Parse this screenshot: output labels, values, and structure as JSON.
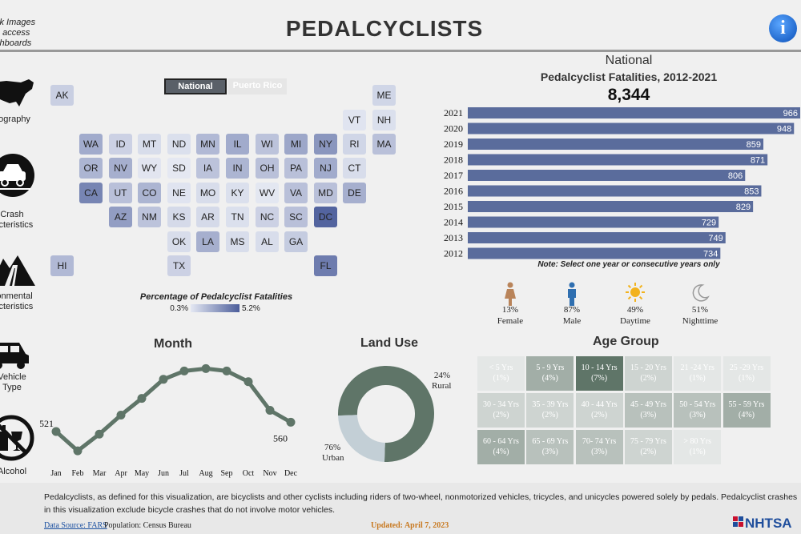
{
  "header": {
    "click_note": "ck Images\no access\nshboards",
    "title": "PEDALCYCLISTS",
    "info_icon": "i"
  },
  "nav": [
    {
      "label": "eography",
      "icon": "us-map-icon"
    },
    {
      "label": "Crash\nracteristics",
      "icon": "car-crash-icon"
    },
    {
      "label": "ironmental\nracteristics",
      "icon": "road-mountain-icon"
    },
    {
      "label": "Vehicle\nType",
      "icon": "car-icon"
    },
    {
      "label": "Alcohol",
      "icon": "no-alcohol-icon"
    }
  ],
  "toggle": {
    "national": "National",
    "puerto_rico": "Puerto Rico"
  },
  "states": [
    {
      "abbr": "AK",
      "shade": 0.2
    },
    {
      "abbr": "ME",
      "shade": 0.15
    },
    {
      "abbr": "VT",
      "shade": 0.05
    },
    {
      "abbr": "NH",
      "shade": 0.08
    },
    {
      "abbr": "WA",
      "shade": 0.45
    },
    {
      "abbr": "ID",
      "shade": 0.18
    },
    {
      "abbr": "MT",
      "shade": 0.1
    },
    {
      "abbr": "ND",
      "shade": 0.08
    },
    {
      "abbr": "MN",
      "shade": 0.35
    },
    {
      "abbr": "IL",
      "shade": 0.45
    },
    {
      "abbr": "WI",
      "shade": 0.28
    },
    {
      "abbr": "MI",
      "shade": 0.48
    },
    {
      "abbr": "NY",
      "shade": 0.6
    },
    {
      "abbr": "RI",
      "shade": 0.15
    },
    {
      "abbr": "MA",
      "shade": 0.3
    },
    {
      "abbr": "OR",
      "shade": 0.38
    },
    {
      "abbr": "NV",
      "shade": 0.42
    },
    {
      "abbr": "WY",
      "shade": 0.04
    },
    {
      "abbr": "SD",
      "shade": 0.02
    },
    {
      "abbr": "IA",
      "shade": 0.28
    },
    {
      "abbr": "IN",
      "shade": 0.38
    },
    {
      "abbr": "OH",
      "shade": 0.3
    },
    {
      "abbr": "PA",
      "shade": 0.3
    },
    {
      "abbr": "NJ",
      "shade": 0.45
    },
    {
      "abbr": "CT",
      "shade": 0.1
    },
    {
      "abbr": "CA",
      "shade": 0.72
    },
    {
      "abbr": "UT",
      "shade": 0.3
    },
    {
      "abbr": "CO",
      "shade": 0.38
    },
    {
      "abbr": "NE",
      "shade": 0.05
    },
    {
      "abbr": "MO",
      "shade": 0.1
    },
    {
      "abbr": "KY",
      "shade": 0.08
    },
    {
      "abbr": "WV",
      "shade": 0.03
    },
    {
      "abbr": "VA",
      "shade": 0.3
    },
    {
      "abbr": "MD",
      "shade": 0.3
    },
    {
      "abbr": "DE",
      "shade": 0.42
    },
    {
      "abbr": "AZ",
      "shade": 0.55
    },
    {
      "abbr": "NM",
      "shade": 0.28
    },
    {
      "abbr": "KS",
      "shade": 0.12
    },
    {
      "abbr": "AR",
      "shade": 0.12
    },
    {
      "abbr": "TN",
      "shade": 0.08
    },
    {
      "abbr": "NC",
      "shade": 0.18
    },
    {
      "abbr": "SC",
      "shade": 0.3
    },
    {
      "abbr": "DC",
      "shade": 0.95
    },
    {
      "abbr": "OK",
      "shade": 0.1
    },
    {
      "abbr": "LA",
      "shade": 0.42
    },
    {
      "abbr": "MS",
      "shade": 0.1
    },
    {
      "abbr": "AL",
      "shade": 0.1
    },
    {
      "abbr": "GA",
      "shade": 0.22
    },
    {
      "abbr": "HI",
      "shade": 0.35
    },
    {
      "abbr": "TX",
      "shade": 0.18
    },
    {
      "abbr": "FL",
      "shade": 0.78
    }
  ],
  "legend": {
    "title": "Percentage of Pedalcyclist Fatalities",
    "min": "0.3%",
    "max": "5.2%"
  },
  "national": {
    "title": "National",
    "subtitle": "Pedalcyclist Fatalities,  2012-2021",
    "total": "8,344",
    "note": "Note: Select one year or consecutive years only"
  },
  "stats": [
    {
      "pct": "13%",
      "label": "Female",
      "icon": "female-icon"
    },
    {
      "pct": "87%",
      "label": "Male",
      "icon": "male-icon"
    },
    {
      "pct": "49%",
      "label": "Daytime",
      "icon": "sun-icon"
    },
    {
      "pct": "51%",
      "label": "Nighttime",
      "icon": "moon-icon"
    }
  ],
  "sections": {
    "month": "Month",
    "land_use": "Land Use",
    "age_group": "Age Group"
  },
  "land_use": {
    "rural_pct": "24%",
    "rural_label": "Rural",
    "urban_pct": "76%",
    "urban_label": "Urban"
  },
  "age_groups": [
    {
      "label": "< 5 Yrs",
      "pct": "(1%)",
      "value": 1
    },
    {
      "label": "5 - 9 Yrs",
      "pct": "(4%)",
      "value": 4
    },
    {
      "label": "10 - 14 Yrs",
      "pct": "(7%)",
      "value": 7
    },
    {
      "label": "15 - 20 Yrs",
      "pct": "(2%)",
      "value": 2
    },
    {
      "label": "21 -24 Yrs",
      "pct": "(1%)",
      "value": 1
    },
    {
      "label": "25 -29 Yrs",
      "pct": "(1%)",
      "value": 1
    },
    {
      "label": "30 - 34 Yrs",
      "pct": "(2%)",
      "value": 2
    },
    {
      "label": "35 - 39 Yrs",
      "pct": "(2%)",
      "value": 2
    },
    {
      "label": "40 - 44 Yrs",
      "pct": "(2%)",
      "value": 2
    },
    {
      "label": "45 - 49 Yrs",
      "pct": "(3%)",
      "value": 3
    },
    {
      "label": "50 - 54 Yrs",
      "pct": "(3%)",
      "value": 3
    },
    {
      "label": "55 - 59 Yrs",
      "pct": "(4%)",
      "value": 4
    },
    {
      "label": "60 - 64 Yrs",
      "pct": "(4%)",
      "value": 4
    },
    {
      "label": "65 - 69 Yrs",
      "pct": "(3%)",
      "value": 3
    },
    {
      "label": "70- 74 Yrs",
      "pct": "(3%)",
      "value": 3
    },
    {
      "label": "75 - 79 Yrs",
      "pct": "(2%)",
      "value": 2
    },
    {
      "label": "> 80 Yrs",
      "pct": "(1%)",
      "value": 1
    }
  ],
  "footer": {
    "text": "Pedalcyclists, as defined for this visualization, are bicyclists and other cyclists including riders of two-wheel, nonmotorized vehicles, tricycles, and unicycles powered solely by pedals. Pedalcyclist crashes in this visualization exclude bicycle crashes that do not involve motor vehicles.",
    "data_source": "Data Source: FARS",
    "population": "Population: Census Bureau",
    "updated": "Updated: April 7, 2023",
    "logo": "NHTSA"
  },
  "chart_data": [
    {
      "type": "bar",
      "orientation": "horizontal",
      "title": "Pedalcyclist Fatalities,  2012-2021",
      "categories": [
        "2021",
        "2020",
        "2019",
        "2018",
        "2017",
        "2016",
        "2015",
        "2014",
        "2013",
        "2012"
      ],
      "values": [
        966,
        948,
        859,
        871,
        806,
        853,
        829,
        729,
        749,
        734
      ],
      "xlim": [
        0,
        966
      ],
      "color": "#5a6c9c"
    },
    {
      "type": "line",
      "title": "Month",
      "categories": [
        "Jan",
        "Feb",
        "Mar",
        "Apr",
        "May",
        "Jun",
        "Jul",
        "Aug",
        "Sep",
        "Oct",
        "Nov",
        "Dec"
      ],
      "values": [
        521,
        440,
        510,
        590,
        660,
        740,
        775,
        785,
        775,
        730,
        610,
        560
      ],
      "labeled_points": {
        "Jan": "521",
        "Dec": "560"
      },
      "ylim": [
        400,
        820
      ],
      "color": "#5f7568"
    },
    {
      "type": "pie",
      "title": "Land Use",
      "categories": [
        "Urban",
        "Rural"
      ],
      "values": [
        76,
        24
      ],
      "colors": [
        "#5f7568",
        "#c3cfd6"
      ]
    }
  ]
}
